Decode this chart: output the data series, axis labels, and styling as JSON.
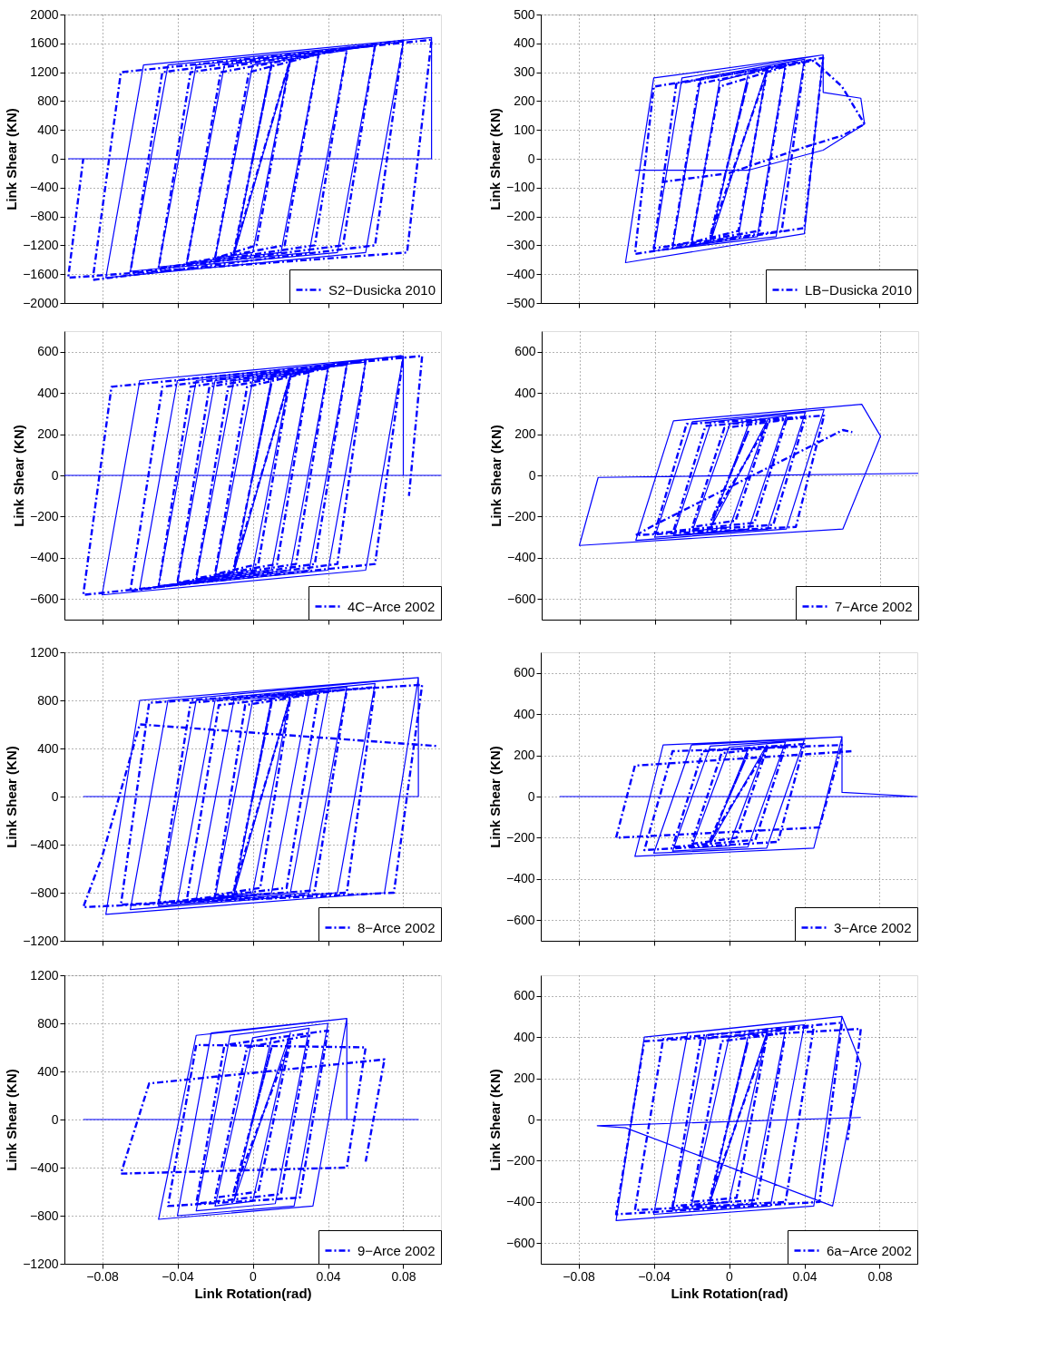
{
  "chart_data": [
    {
      "type": "line",
      "ylabel": "Link Shear (KN)",
      "xlim": [
        -0.1,
        0.1
      ],
      "xticks": [
        -0.08,
        -0.04,
        0,
        0.04,
        0.08
      ],
      "ylim": [
        -2000,
        2000
      ],
      "yticks": [
        -2000,
        -1600,
        -1200,
        -800,
        -400,
        0,
        400,
        800,
        1200,
        1600,
        2000
      ],
      "grid": true,
      "legend": "bottom right",
      "tick_labels": "y",
      "series": [
        {
          "color": "#0000ff",
          "line_style": "solid",
          "x": [
            0,
            0.01,
            -0.01,
            0.02,
            0,
            -0.02,
            0,
            0.035,
            0.015,
            -0.035,
            -0.015,
            0.05,
            0.03,
            -0.05,
            -0.03,
            0.065,
            0.045,
            -0.065,
            -0.045,
            0.08,
            0.06,
            -0.078,
            -0.058,
            0.095,
            0.095,
            -0.098
          ],
          "values": [
            0,
            1340,
            -1340,
            1380,
            -1300,
            -1380,
            1300,
            1440,
            -1300,
            -1440,
            1300,
            1500,
            -1300,
            -1500,
            1300,
            1560,
            -1300,
            -1560,
            1300,
            1620,
            -1300,
            -1650,
            1300,
            1680,
            0,
            0
          ]
        },
        {
          "name": "S2−Dusicka 2010",
          "color": "#0000ff",
          "line_style": "dashed",
          "x": [
            0,
            0.01,
            -0.01,
            0.02,
            0.002,
            -0.02,
            -0.002,
            0.035,
            0.017,
            -0.035,
            -0.017,
            0.05,
            0.033,
            -0.05,
            -0.033,
            0.065,
            0.048,
            -0.065,
            -0.048,
            0.08,
            0.065,
            -0.085,
            -0.07,
            0.095,
            0.082,
            -0.098,
            -0.09
          ],
          "values": [
            0,
            1300,
            -1300,
            1380,
            -1200,
            -1380,
            1200,
            1450,
            -1200,
            -1450,
            1200,
            1520,
            -1200,
            -1520,
            1200,
            1580,
            -1200,
            -1580,
            1200,
            1640,
            -1200,
            -1680,
            1200,
            1650,
            -1300,
            -1650,
            0
          ]
        }
      ]
    },
    {
      "type": "line",
      "ylabel": "Link Shear (KN)",
      "xlim": [
        -0.1,
        0.1
      ],
      "xticks": [
        -0.08,
        -0.04,
        0,
        0.04,
        0.08
      ],
      "ylim": [
        -500,
        500
      ],
      "yticks": [
        -500,
        -400,
        -300,
        -200,
        -100,
        0,
        100,
        200,
        300,
        400,
        500
      ],
      "grid": true,
      "legend": "bottom right",
      "tick_labels": "y",
      "series": [
        {
          "color": "#0000ff",
          "line_style": "solid",
          "x": [
            0,
            0.01,
            -0.01,
            0.02,
            0.005,
            -0.02,
            -0.005,
            0.03,
            0.015,
            -0.03,
            -0.015,
            0.04,
            0.025,
            -0.04,
            -0.025,
            0.05,
            0.04,
            -0.055,
            -0.04,
            0.05,
            0.05,
            0.07,
            0.072,
            0.05,
            0.01,
            -0.05
          ],
          "values": [
            0,
            290,
            -290,
            310,
            -270,
            -300,
            270,
            330,
            -270,
            -310,
            280,
            345,
            -270,
            -320,
            280,
            360,
            -260,
            -360,
            280,
            360,
            230,
            210,
            120,
            30,
            -40,
            -40
          ]
        },
        {
          "name": "LB−Dusicka 2010",
          "color": "#0000ff",
          "line_style": "dashed",
          "x": [
            0,
            0.01,
            -0.01,
            0.02,
            0.005,
            -0.02,
            -0.005,
            0.03,
            0.016,
            -0.03,
            -0.016,
            0.04,
            0.028,
            -0.04,
            -0.028,
            0.05,
            0.04,
            -0.05,
            -0.04,
            0.045,
            0.06,
            0.072,
            0.06,
            0.04,
            0,
            -0.035
          ],
          "values": [
            0,
            270,
            -270,
            300,
            -250,
            -290,
            250,
            320,
            -250,
            -300,
            260,
            335,
            -250,
            -310,
            260,
            350,
            -240,
            -330,
            250,
            340,
            250,
            120,
            80,
            40,
            -50,
            -80
          ]
        }
      ]
    },
    {
      "type": "line",
      "ylabel": "Link Shear (KN)",
      "xlim": [
        -0.1,
        0.1
      ],
      "xticks": [
        -0.08,
        -0.04,
        0,
        0.04,
        0.08
      ],
      "ylim": [
        -700,
        700
      ],
      "yticks": [
        -600,
        -400,
        -200,
        0,
        200,
        400,
        600
      ],
      "grid": true,
      "legend": "bottom right",
      "tick_labels": "y",
      "series": [
        {
          "color": "#0000ff",
          "line_style": "solid",
          "x": [
            0,
            0.01,
            -0.01,
            0.02,
            0,
            -0.02,
            0,
            0.03,
            0.01,
            -0.03,
            -0.01,
            0.04,
            0.02,
            -0.04,
            -0.02,
            0.05,
            0.03,
            -0.05,
            -0.03,
            0.06,
            0.04,
            -0.06,
            -0.04,
            0.08,
            0.06,
            -0.08,
            -0.06,
            0.08,
            0.08,
            0.1,
            -0.1
          ],
          "values": [
            0,
            470,
            -470,
            490,
            -460,
            -490,
            460,
            505,
            -460,
            -505,
            460,
            520,
            -460,
            -520,
            460,
            535,
            -460,
            -535,
            460,
            550,
            -460,
            -550,
            460,
            580,
            -460,
            -580,
            460,
            580,
            0,
            0,
            0
          ]
        },
        {
          "name": "4C−Arce 2002",
          "color": "#0000ff",
          "line_style": "dashed",
          "x": [
            0,
            0.01,
            -0.01,
            0.02,
            0.003,
            -0.02,
            -0.003,
            0.03,
            0.013,
            -0.03,
            -0.013,
            0.04,
            0.023,
            -0.04,
            -0.023,
            0.05,
            0.033,
            -0.05,
            -0.033,
            0.06,
            0.045,
            -0.065,
            -0.048,
            0.08,
            0.065,
            -0.09,
            -0.075,
            0.09,
            0.083
          ],
          "values": [
            0,
            450,
            -450,
            480,
            -430,
            -480,
            430,
            500,
            -430,
            -500,
            430,
            520,
            -430,
            -520,
            430,
            540,
            -430,
            -540,
            430,
            560,
            -430,
            -560,
            430,
            580,
            -430,
            -580,
            430,
            580,
            -100
          ]
        }
      ]
    },
    {
      "type": "line",
      "ylabel": "Link Shear (KN)",
      "xlim": [
        -0.1,
        0.1
      ],
      "xticks": [
        -0.08,
        -0.04,
        0,
        0.04,
        0.08
      ],
      "ylim": [
        -700,
        700
      ],
      "yticks": [
        -600,
        -400,
        -200,
        0,
        200,
        400,
        600
      ],
      "grid": true,
      "legend": "bottom right",
      "tick_labels": "y",
      "series": [
        {
          "color": "#0000ff",
          "line_style": "solid",
          "x": [
            0,
            0.01,
            -0.01,
            0.02,
            0,
            -0.02,
            0,
            0.03,
            0.01,
            -0.03,
            -0.01,
            0.04,
            0.02,
            -0.04,
            -0.02,
            0.05,
            0.03,
            -0.05,
            -0.03,
            0.07,
            0.08,
            0.06,
            -0.08,
            -0.07,
            0.1
          ],
          "values": [
            0,
            250,
            -250,
            270,
            -250,
            -270,
            250,
            290,
            -260,
            -290,
            260,
            305,
            -260,
            -300,
            260,
            320,
            -260,
            -315,
            265,
            345,
            190,
            -260,
            -340,
            -10,
            10
          ]
        },
        {
          "name": "7−Arce 2002",
          "color": "#0000ff",
          "line_style": "dashed",
          "x": [
            0,
            0.01,
            -0.01,
            0.02,
            0.003,
            -0.02,
            -0.003,
            0.03,
            0.013,
            -0.03,
            -0.013,
            0.04,
            0.023,
            -0.04,
            -0.023,
            0.05,
            0.035,
            -0.05,
            -0.04,
            0.06,
            0.065
          ],
          "values": [
            0,
            220,
            -220,
            250,
            -220,
            -250,
            230,
            270,
            -230,
            -270,
            240,
            280,
            -240,
            -280,
            250,
            290,
            -250,
            -290,
            -240,
            220,
            210
          ]
        }
      ]
    },
    {
      "type": "line",
      "ylabel": "Link Shear (KN)",
      "xlim": [
        -0.1,
        0.1
      ],
      "xticks": [
        -0.08,
        -0.04,
        0,
        0.04,
        0.08
      ],
      "ylim": [
        -1200,
        1200
      ],
      "yticks": [
        -1200,
        -800,
        -400,
        0,
        400,
        800,
        1200
      ],
      "grid": true,
      "legend": "bottom right",
      "tick_labels": "y",
      "series": [
        {
          "color": "#0000ff",
          "line_style": "solid",
          "x": [
            0,
            0.01,
            -0.01,
            0.02,
            0,
            -0.02,
            0,
            0.03,
            0.01,
            -0.03,
            -0.01,
            0.04,
            0.02,
            -0.04,
            -0.02,
            0.05,
            0.03,
            -0.05,
            -0.03,
            0.065,
            0.045,
            -0.065,
            -0.045,
            0.088,
            0.07,
            -0.078,
            -0.06,
            0.088,
            0.088,
            -0.09
          ],
          "values": [
            0,
            820,
            -820,
            840,
            -800,
            -840,
            800,
            860,
            -800,
            -860,
            800,
            880,
            -800,
            -880,
            800,
            910,
            -800,
            -910,
            800,
            940,
            -800,
            -940,
            800,
            990,
            -800,
            -980,
            800,
            990,
            0,
            0
          ]
        },
        {
          "name": "8−Arce 2002",
          "color": "#0000ff",
          "line_style": "dashed",
          "x": [
            0,
            0.01,
            -0.01,
            0.02,
            0.004,
            -0.02,
            -0.004,
            0.035,
            0.018,
            -0.035,
            -0.018,
            0.05,
            0.033,
            -0.05,
            -0.033,
            0.065,
            0.05,
            -0.07,
            -0.055,
            0.09,
            0.075,
            -0.09,
            -0.08,
            -0.06,
            0.098
          ],
          "values": [
            0,
            780,
            -780,
            820,
            -760,
            -820,
            760,
            860,
            -760,
            -860,
            760,
            890,
            -780,
            -880,
            780,
            910,
            -800,
            -900,
            780,
            930,
            -800,
            -920,
            -500,
            600,
            420
          ]
        }
      ]
    },
    {
      "type": "line",
      "ylabel": "Link Shear (KN)",
      "xlim": [
        -0.1,
        0.1
      ],
      "xticks": [
        -0.08,
        -0.04,
        0,
        0.04,
        0.08
      ],
      "ylim": [
        -700,
        700
      ],
      "yticks": [
        -600,
        -400,
        -200,
        0,
        200,
        400,
        600
      ],
      "grid": true,
      "legend": "bottom right",
      "tick_labels": "y",
      "series": [
        {
          "color": "#0000ff",
          "line_style": "solid",
          "x": [
            0,
            0.01,
            -0.01,
            0.02,
            0,
            -0.02,
            0,
            0.03,
            0.01,
            -0.03,
            -0.01,
            0.04,
            0.02,
            -0.04,
            -0.02,
            0.06,
            0.045,
            -0.05,
            -0.035,
            0.06,
            0.06,
            0.1,
            -0.09
          ],
          "values": [
            0,
            230,
            -230,
            250,
            -240,
            -250,
            240,
            265,
            -245,
            -265,
            245,
            275,
            -250,
            -275,
            250,
            290,
            -250,
            -290,
            250,
            290,
            20,
            0,
            0
          ]
        },
        {
          "name": "3−Arce 2002",
          "color": "#0000ff",
          "line_style": "dashed",
          "x": [
            0,
            0.01,
            -0.01,
            0.02,
            0.004,
            -0.02,
            -0.004,
            0.03,
            0.014,
            -0.03,
            -0.014,
            0.04,
            0.026,
            -0.045,
            -0.03,
            0.06,
            0.048,
            -0.06,
            -0.05,
            0.065
          ],
          "values": [
            0,
            210,
            -210,
            230,
            -200,
            -230,
            210,
            245,
            -210,
            -245,
            220,
            255,
            -220,
            -260,
            220,
            250,
            -150,
            -200,
            150,
            220
          ]
        }
      ]
    },
    {
      "type": "line",
      "ylabel": "Link Shear (KN)",
      "xlabel": "Link Rotation(rad)",
      "xlim": [
        -0.1,
        0.1
      ],
      "xticks": [
        -0.08,
        -0.04,
        0,
        0.04,
        0.08
      ],
      "ylim": [
        -1200,
        1200
      ],
      "yticks": [
        -1200,
        -800,
        -400,
        0,
        400,
        800,
        1200
      ],
      "grid": true,
      "legend": "bottom right",
      "series": [
        {
          "color": "#0000ff",
          "line_style": "solid",
          "x": [
            0,
            0.01,
            -0.01,
            0.02,
            0,
            -0.02,
            0,
            0.03,
            0.012,
            -0.03,
            -0.012,
            0.04,
            0.022,
            -0.04,
            -0.022,
            0.05,
            0.032,
            -0.05,
            -0.03,
            0.05,
            0.05,
            0.088,
            -0.09
          ],
          "values": [
            0,
            680,
            -680,
            720,
            -680,
            -720,
            680,
            760,
            -700,
            -760,
            700,
            800,
            -720,
            -800,
            720,
            840,
            -720,
            -830,
            700,
            840,
            0,
            0,
            0
          ]
        },
        {
          "name": "9−Arce 2002",
          "color": "#0000ff",
          "line_style": "dashed",
          "x": [
            0,
            0.01,
            -0.01,
            0.02,
            0.003,
            -0.02,
            -0.003,
            0.03,
            0.015,
            -0.03,
            -0.015,
            0.04,
            0.025,
            -0.045,
            -0.03,
            0.06,
            0.05,
            -0.07,
            -0.055,
            0.07,
            0.06
          ],
          "values": [
            0,
            600,
            -600,
            650,
            -600,
            -650,
            600,
            700,
            -620,
            -700,
            620,
            740,
            -650,
            -720,
            620,
            600,
            -400,
            -450,
            300,
            500,
            -350
          ]
        }
      ]
    },
    {
      "type": "line",
      "ylabel": "Link Shear (KN)",
      "xlabel": "Link Rotation(rad)",
      "xlim": [
        -0.1,
        0.1
      ],
      "xticks": [
        -0.08,
        -0.04,
        0,
        0.04,
        0.08
      ],
      "ylim": [
        -700,
        700
      ],
      "yticks": [
        -600,
        -400,
        -200,
        0,
        200,
        400,
        600
      ],
      "grid": true,
      "legend": "bottom right",
      "series": [
        {
          "color": "#0000ff",
          "line_style": "solid",
          "x": [
            0,
            0.01,
            -0.01,
            0.02,
            0,
            -0.02,
            0,
            0.03,
            0.012,
            -0.03,
            -0.012,
            0.04,
            0.022,
            -0.04,
            -0.022,
            0.06,
            0.045,
            -0.06,
            -0.045,
            0.06,
            0.07,
            0.055,
            -0.055,
            -0.07,
            0.07
          ],
          "values": [
            0,
            400,
            -400,
            420,
            -400,
            -420,
            400,
            440,
            -410,
            -440,
            410,
            460,
            -420,
            -460,
            420,
            500,
            -420,
            -490,
            400,
            500,
            270,
            -420,
            -40,
            -30,
            10
          ]
        },
        {
          "name": "6a−Arce 2002",
          "color": "#0000ff",
          "line_style": "dashed",
          "x": [
            0,
            0.01,
            -0.01,
            0.02,
            0.004,
            -0.02,
            -0.004,
            0.03,
            0.015,
            -0.03,
            -0.015,
            0.045,
            0.03,
            -0.05,
            -0.035,
            0.06,
            0.048,
            -0.06,
            -0.045,
            0.07,
            0.063
          ],
          "values": [
            0,
            380,
            -380,
            400,
            -380,
            -400,
            380,
            420,
            -390,
            -420,
            390,
            450,
            -400,
            -440,
            390,
            470,
            -400,
            -460,
            380,
            440,
            -100
          ]
        }
      ]
    }
  ]
}
